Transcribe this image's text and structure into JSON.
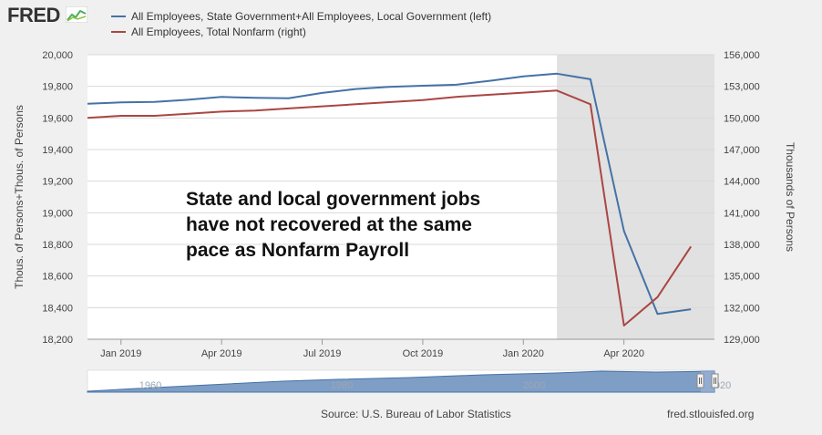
{
  "logo": {
    "text": "FRED",
    "icon": "chart-line-icon"
  },
  "legend": [
    {
      "label": "All Employees, State Government+All Employees, Local Government (left)",
      "color": "#4572a7"
    },
    {
      "label": "All Employees, Total Nonfarm (right)",
      "color": "#aa4643"
    }
  ],
  "annotation": "State and local government jobs\nhave not recovered at the same\npace as Nonfarm Payroll",
  "source": "Source: U.S. Bureau of Labor Statistics",
  "site": "fred.stlouisfed.org",
  "navigator": {
    "labels": [
      "1960",
      "1980",
      "2000",
      "2020"
    ]
  },
  "chart_data": {
    "type": "line",
    "ylabel_left": "Thous. of Persons+Thous. of Persons",
    "ylabel_right": "Thousands of Persons",
    "x_ticks": [
      "Jan 2019",
      "Apr 2019",
      "Jul 2019",
      "Oct 2019",
      "Jan 2020",
      "Apr 2020"
    ],
    "ylim_left": [
      18200,
      20000
    ],
    "ylim_right": [
      129000,
      156000
    ],
    "yticks_left": [
      "18,200",
      "18,400",
      "18,600",
      "18,800",
      "19,000",
      "19,200",
      "19,400",
      "19,600",
      "19,800",
      "20,000"
    ],
    "yticks_right": [
      "129,000",
      "132,000",
      "135,000",
      "138,000",
      "141,000",
      "144,000",
      "147,000",
      "150,000",
      "153,000",
      "156,000"
    ],
    "recession_shading": {
      "start": "2020-02",
      "end": "2020-06"
    },
    "grid": true,
    "series": [
      {
        "name": "All Employees, State Government+All Employees, Local Government (left)",
        "axis": "left",
        "color": "#4572a7",
        "x": [
          "2018-12",
          "2019-01",
          "2019-02",
          "2019-03",
          "2019-04",
          "2019-05",
          "2019-06",
          "2019-07",
          "2019-08",
          "2019-09",
          "2019-10",
          "2019-11",
          "2019-12",
          "2020-01",
          "2020-02",
          "2020-03",
          "2020-04",
          "2020-05",
          "2020-06"
        ],
        "values": [
          19690,
          19698,
          19702,
          19715,
          19733,
          19727,
          19725,
          19758,
          19783,
          19797,
          19804,
          19810,
          19835,
          19863,
          19880,
          19845,
          18885,
          18360,
          18390
        ]
      },
      {
        "name": "All Employees, Total Nonfarm (right)",
        "axis": "right",
        "color": "#aa4643",
        "x": [
          "2018-12",
          "2019-01",
          "2019-02",
          "2019-03",
          "2019-04",
          "2019-05",
          "2019-06",
          "2019-07",
          "2019-08",
          "2019-09",
          "2019-10",
          "2019-11",
          "2019-12",
          "2020-01",
          "2020-02",
          "2020-03",
          "2020-04",
          "2020-05",
          "2020-06"
        ],
        "values": [
          150000,
          150200,
          150200,
          150400,
          150600,
          150700,
          150900,
          151100,
          151300,
          151500,
          151700,
          152000,
          152200,
          152400,
          152600,
          151300,
          130300,
          133000,
          137800
        ]
      }
    ]
  }
}
